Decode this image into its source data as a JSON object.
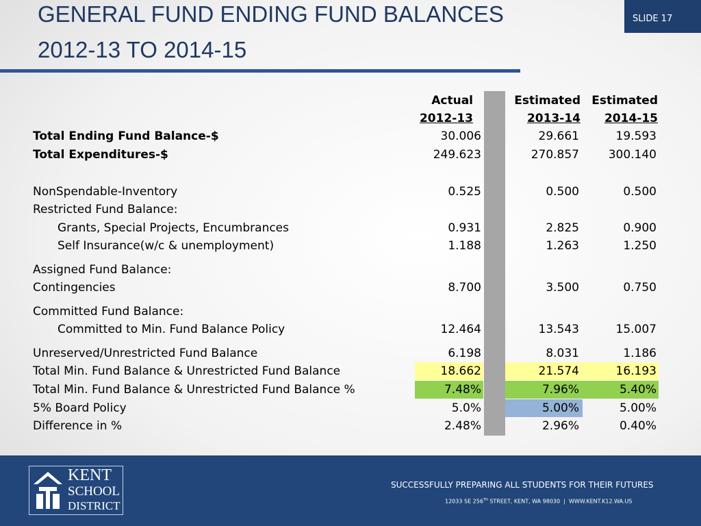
{
  "header": {
    "title": [
      "GENERAL FUND ENDING FUND BALANCES",
      "2012-13 TO 2014-15"
    ],
    "slide": "SLIDE 17"
  },
  "table": {
    "columns": [
      [
        "Actual",
        "2012-13"
      ],
      [
        "Estimated",
        "2013-14"
      ],
      [
        "Estimated",
        "2014-15"
      ]
    ],
    "rows": [
      {
        "label": "Total Ending Fund Balance-$",
        "bold": true,
        "values": [
          "30.006",
          "29.661",
          "19.593"
        ]
      },
      {
        "label": "Total Expenditures-$",
        "bold": true,
        "values": [
          "249.623",
          "270.857",
          "300.140"
        ]
      },
      {
        "label": "NonSpendable-Inventory",
        "values": [
          "0.525",
          "0.500",
          "0.500"
        ]
      },
      {
        "label": "Restricted Fund Balance:",
        "values": []
      },
      {
        "label": "Grants, Special Projects, Encumbrances",
        "indent": true,
        "values": [
          "0.931",
          "2.825",
          "0.900"
        ]
      },
      {
        "label": "Self Insurance(w/c & unemployment)",
        "indent": true,
        "values": [
          "1.188",
          "1.263",
          "1.250"
        ]
      },
      {
        "label": "Assigned Fund Balance:",
        "values": []
      },
      {
        "label": "Contingencies",
        "values": [
          "8.700",
          "3.500",
          "0.750"
        ]
      },
      {
        "label": "Committed Fund Balance:",
        "values": []
      },
      {
        "label": "Committed to Min. Fund Balance Policy",
        "indent": true,
        "values": [
          "12.464",
          "13.543",
          "15.007"
        ]
      },
      {
        "label": "Unreserved/Unrestricted Fund Balance",
        "values": [
          "6.198",
          "8.031",
          "1.186"
        ]
      },
      {
        "label": "Total Min. Fund Balance & Unrestricted Fund Balance",
        "values": [
          "18.662",
          "21.574",
          "16.193"
        ],
        "highlight": [
          "#ffff99",
          "#ffff99",
          "#ffff99"
        ]
      },
      {
        "label": "Total Min. Fund Balance & Unrestricted Fund Balance %",
        "values": [
          "7.48%",
          "7.96%",
          "5.40%"
        ],
        "highlight": [
          "#92d050",
          "#92d050",
          "#92d050"
        ]
      },
      {
        "label": "5% Board Policy",
        "values": [
          "5.0%",
          "5.00%",
          "5.00%"
        ],
        "highlight": [
          null,
          "#95b3d7",
          null
        ]
      },
      {
        "label": "Difference in %",
        "values": [
          "2.48%",
          "2.96%",
          "0.40%"
        ]
      }
    ]
  },
  "footer": {
    "logo": [
      "KENT",
      "SCHOOL",
      "DISTRICT"
    ],
    "tagline": "SUCCESSFULLY PREPARING ALL STUDENTS FOR THEIR FUTURES",
    "address": [
      "12033 SE 256",
      "TH",
      "STREET, KENT, WA 98030",
      "|",
      "WWW.KENT.K12.WA.US"
    ]
  }
}
